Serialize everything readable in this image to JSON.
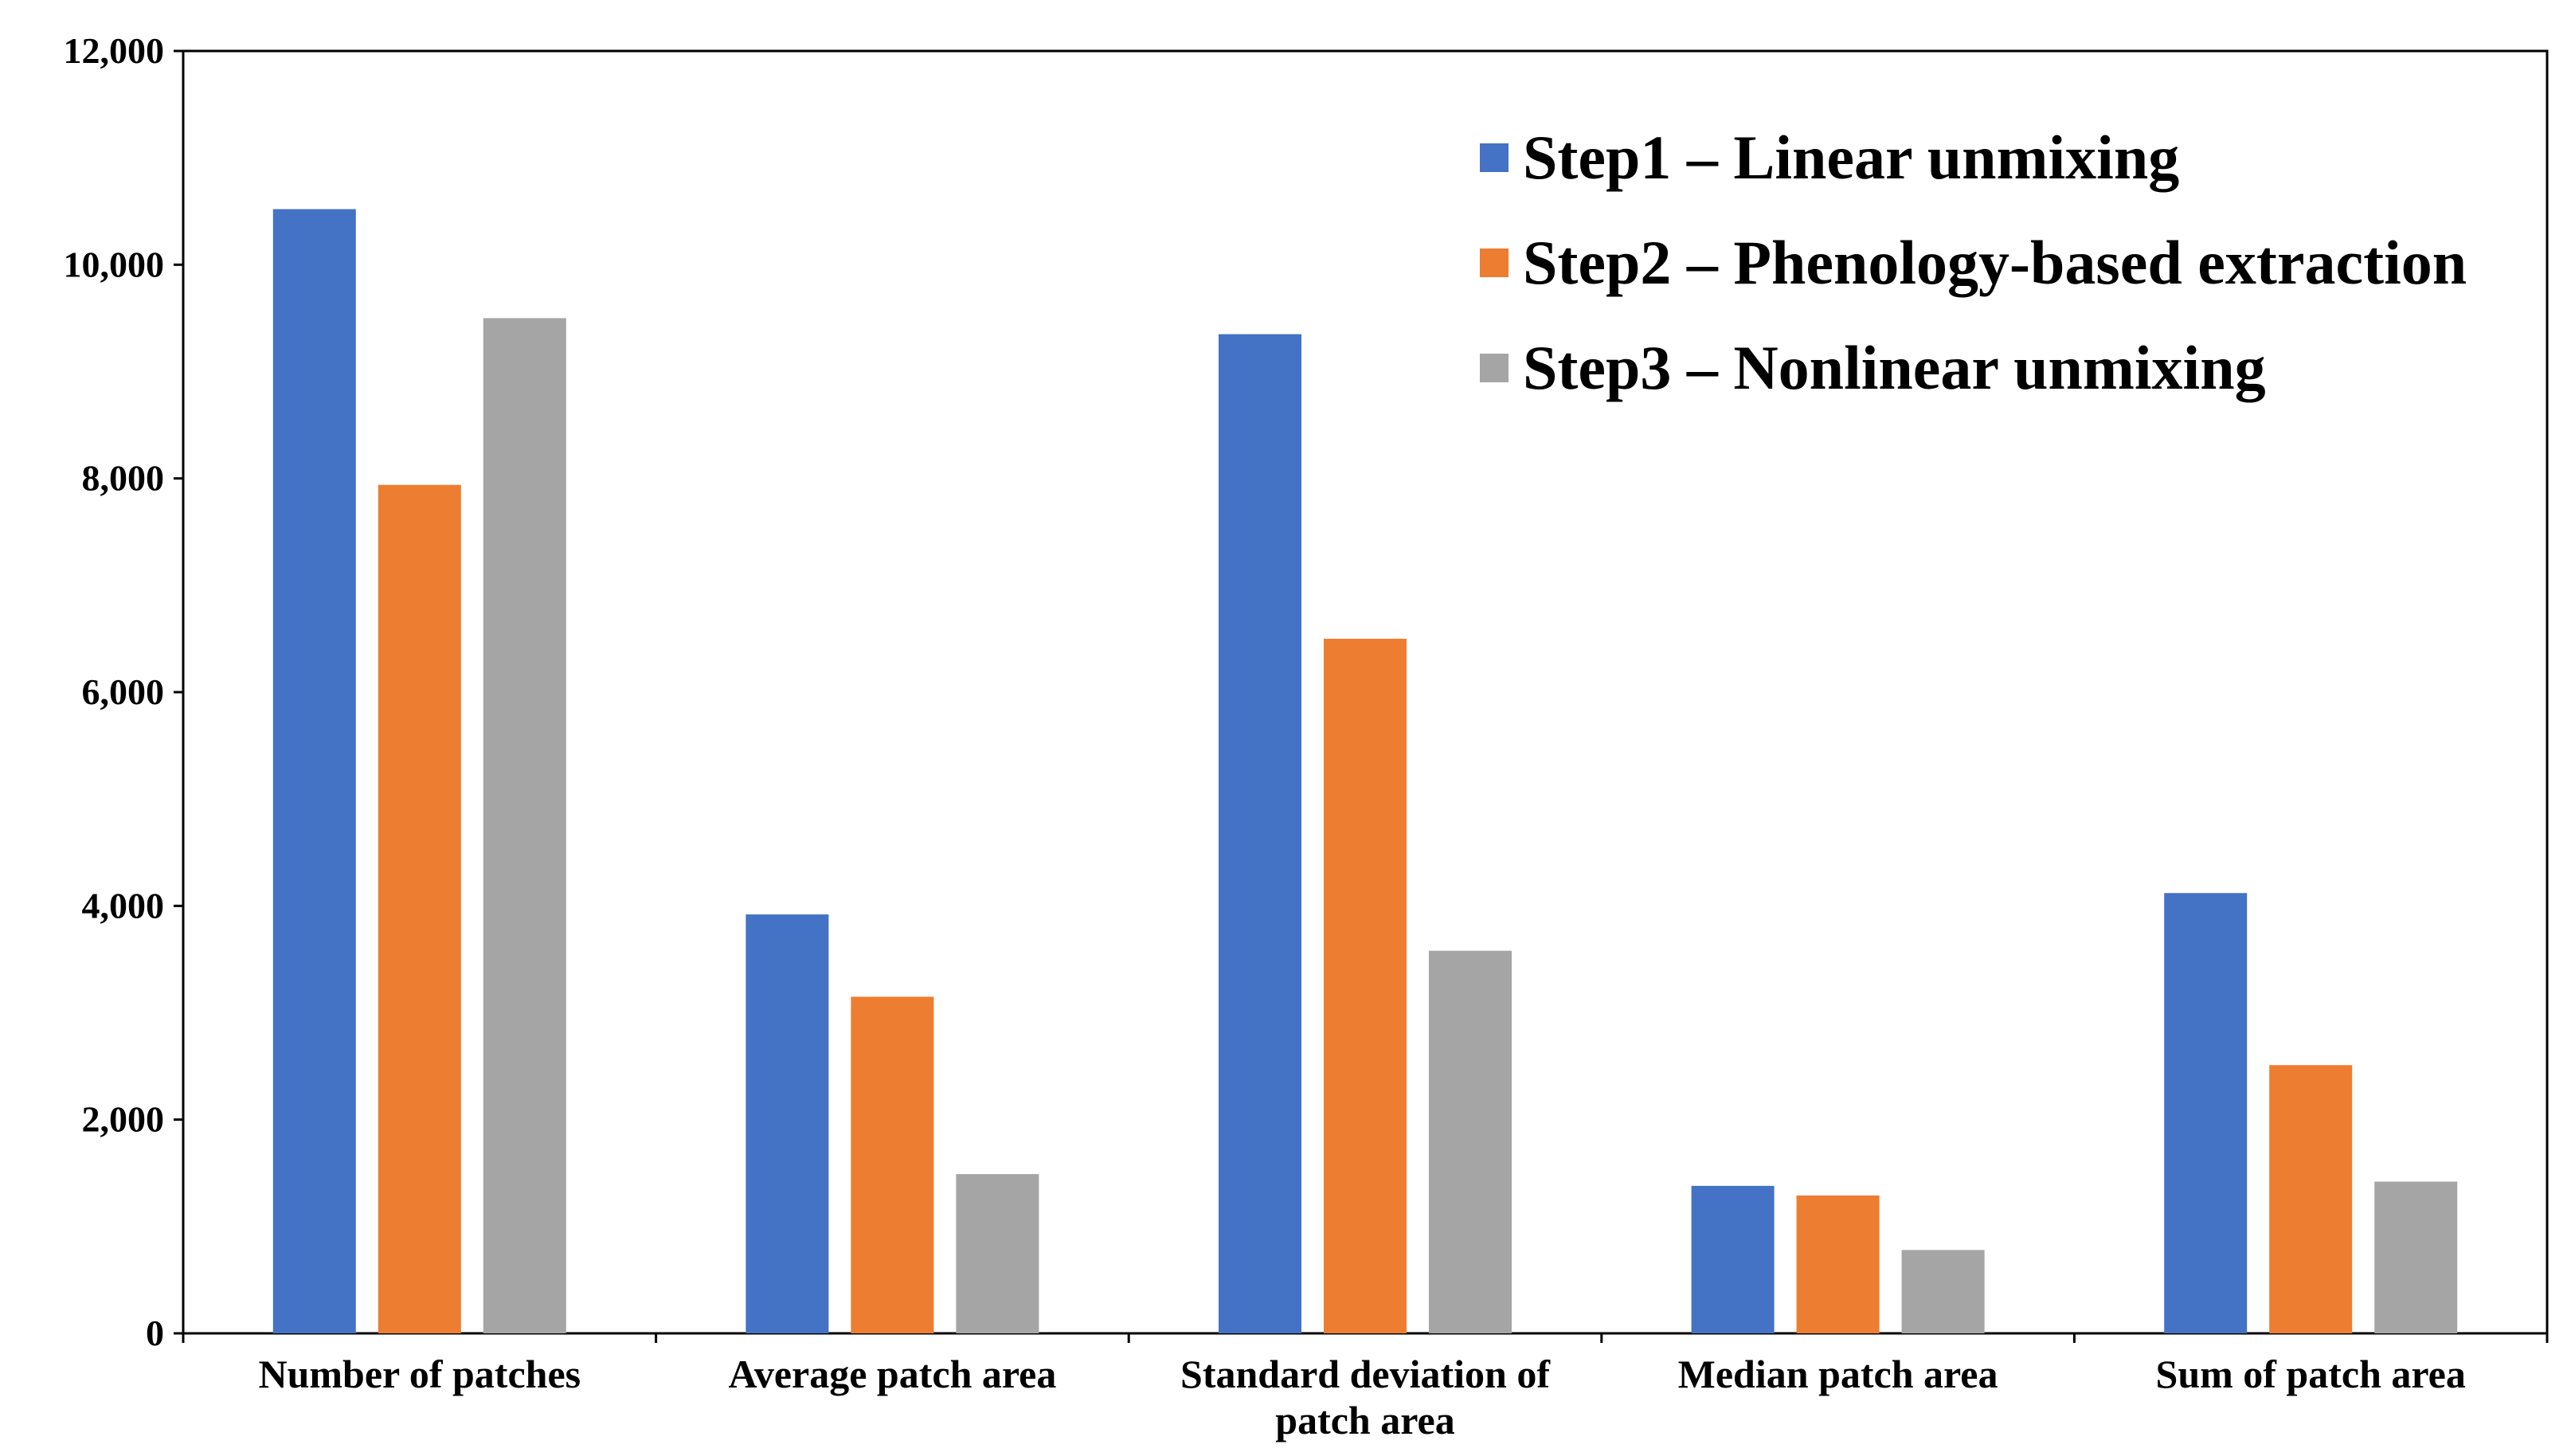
{
  "chart_data": {
    "type": "bar",
    "title": "",
    "xlabel": "",
    "ylabel": "",
    "ylim": [
      0,
      12000
    ],
    "yticks": [
      0,
      2000,
      4000,
      6000,
      8000,
      10000,
      12000
    ],
    "ytick_labels": [
      "0",
      "2,000",
      "4,000",
      "6,000",
      "8,000",
      "10,000",
      "12,000"
    ],
    "categories": [
      [
        "Number of patches"
      ],
      [
        "Average patch area"
      ],
      [
        "Standard deviation of",
        "patch area"
      ],
      [
        "Median patch area"
      ],
      [
        "Sum of patch area"
      ]
    ],
    "series": [
      {
        "name": "Step1 – Linear unmixing",
        "color": "#4472C4",
        "values": [
          10520,
          3920,
          9350,
          1380,
          4120
        ]
      },
      {
        "name": "Step2 – Phenology-based extraction",
        "color": "#ED7D31",
        "values": [
          7940,
          3150,
          6500,
          1290,
          2510
        ]
      },
      {
        "name": "Step3 – Nonlinear unmixing",
        "color": "#A5A5A5",
        "values": [
          9500,
          1490,
          3580,
          780,
          1420
        ]
      }
    ],
    "legend_position": "top-right",
    "grid": false
  }
}
